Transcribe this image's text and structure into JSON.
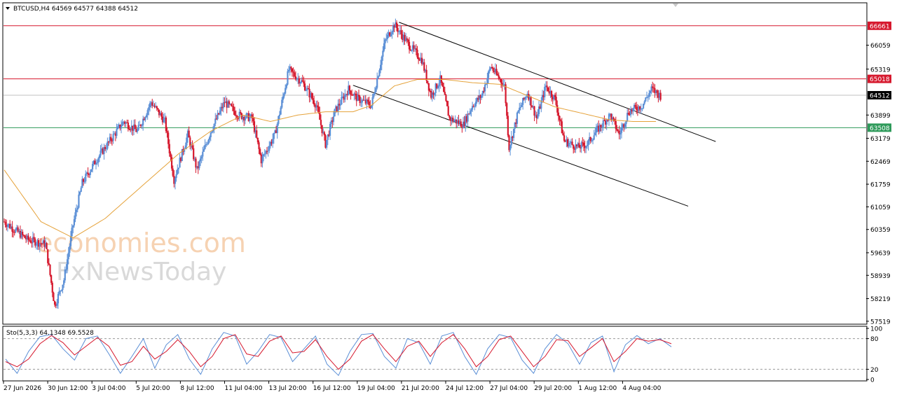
{
  "header": {
    "symbol_line": "BTCUSD,H4  64569 64577 64388 64512",
    "stoch_line": "Sto(5,3,3) 64.1348 69.5528"
  },
  "watermark": {
    "line1": "economies.com",
    "line2": "FxNewsToday"
  },
  "colors": {
    "bull": "#5b8fd6",
    "bear": "#d6182d",
    "ma": "#e5a23a",
    "resistance": "#d6182d",
    "support": "#2e9a5a",
    "stoch_main": "#5b8fd6",
    "stoch_signal": "#d6182d"
  },
  "chart_data": [
    {
      "type": "candlestick",
      "title": "",
      "y_ticks": [
        66661,
        66059,
        65319,
        65018,
        64512,
        63899,
        63508,
        63179,
        62469,
        61759,
        61059,
        60359,
        59639,
        58939,
        58219,
        57519
      ],
      "ylim": [
        57450,
        67350
      ],
      "x_tick_labels": [
        "27 Jun 2026",
        "30 Jun 12:00",
        "3 Jul 04:00",
        "5 Jul 20:00",
        "8 Jul 12:00",
        "11 Jul 04:00",
        "13 Jul 20:00",
        "16 Jul 12:00",
        "19 Jul 04:00",
        "21 Jul 20:00",
        "24 Jul 12:00",
        "27 Jul 04:00",
        "29 Jul 20:00",
        "1 Aug 12:00",
        "4 Aug 04:00"
      ],
      "horizontal_levels": [
        {
          "value": 66661,
          "label": "66661",
          "kind": "resistance"
        },
        {
          "value": 65018,
          "label": "65018",
          "kind": "resistance"
        },
        {
          "value": 64512,
          "label": "64512",
          "kind": "current"
        },
        {
          "value": 63508,
          "label": "63508",
          "kind": "support"
        }
      ],
      "trendlines": [
        {
          "from": [
            86,
            66770
          ],
          "to": [
            155,
            63080
          ]
        },
        {
          "from": [
            76,
            64820
          ],
          "to": [
            149,
            61080
          ]
        }
      ],
      "price_path": [
        [
          0,
          60600
        ],
        [
          5,
          60050
        ],
        [
          9,
          59900
        ],
        [
          11,
          58000
        ],
        [
          13,
          58800
        ],
        [
          15,
          60500
        ],
        [
          17,
          61800
        ],
        [
          20,
          62500
        ],
        [
          23,
          63100
        ],
        [
          26,
          63700
        ],
        [
          29,
          63400
        ],
        [
          32,
          64300
        ],
        [
          35,
          63700
        ],
        [
          37,
          61900
        ],
        [
          40,
          63300
        ],
        [
          42,
          62200
        ],
        [
          45,
          63400
        ],
        [
          48,
          64300
        ],
        [
          51,
          63900
        ],
        [
          54,
          63800
        ],
        [
          56,
          62500
        ],
        [
          59,
          63300
        ],
        [
          62,
          65300
        ],
        [
          65,
          64900
        ],
        [
          68,
          64200
        ],
        [
          70,
          63000
        ],
        [
          72,
          64000
        ],
        [
          75,
          64700
        ],
        [
          77,
          64400
        ],
        [
          80,
          64200
        ],
        [
          83,
          66200
        ],
        [
          85,
          66700
        ],
        [
          88,
          66100
        ],
        [
          91,
          65600
        ],
        [
          93,
          64500
        ],
        [
          95,
          65000
        ],
        [
          97,
          63800
        ],
        [
          100,
          63600
        ],
        [
          102,
          64200
        ],
        [
          104,
          64500
        ],
        [
          106,
          65400
        ],
        [
          109,
          64800
        ],
        [
          110,
          62900
        ],
        [
          112,
          64000
        ],
        [
          114,
          64600
        ],
        [
          116,
          63800
        ],
        [
          118,
          64800
        ],
        [
          120,
          64400
        ],
        [
          122,
          63100
        ],
        [
          125,
          62900
        ],
        [
          127,
          63000
        ],
        [
          129,
          63400
        ],
        [
          132,
          63900
        ],
        [
          134,
          63300
        ],
        [
          136,
          64000
        ],
        [
          139,
          64200
        ],
        [
          141,
          64700
        ],
        [
          143,
          64500
        ]
      ],
      "moving_average": [
        [
          0,
          62200
        ],
        [
          8,
          60600
        ],
        [
          15,
          60100
        ],
        [
          22,
          60700
        ],
        [
          30,
          61700
        ],
        [
          38,
          62700
        ],
        [
          45,
          63400
        ],
        [
          52,
          63900
        ],
        [
          58,
          63700
        ],
        [
          64,
          63900
        ],
        [
          70,
          64000
        ],
        [
          76,
          64000
        ],
        [
          80,
          64200
        ],
        [
          85,
          64800
        ],
        [
          90,
          65000
        ],
        [
          96,
          65000
        ],
        [
          102,
          64900
        ],
        [
          108,
          64850
        ],
        [
          114,
          64500
        ],
        [
          120,
          64150
        ],
        [
          126,
          63950
        ],
        [
          132,
          63750
        ],
        [
          137,
          63700
        ],
        [
          142,
          63700
        ]
      ]
    },
    {
      "type": "line",
      "title": "",
      "y_ticks": [
        100,
        80,
        20,
        0
      ],
      "ylim": [
        0,
        100
      ],
      "levels": [
        80,
        20
      ],
      "series": [
        {
          "values": [
            40,
            12,
            55,
            84,
            88,
            60,
            38,
            80,
            85,
            50,
            12,
            45,
            80,
            22,
            68,
            88,
            40,
            10,
            60,
            92,
            85,
            30,
            55,
            88,
            82,
            35,
            60,
            85,
            30,
            8,
            55,
            88,
            90,
            45,
            22,
            80,
            72,
            30,
            85,
            92,
            45,
            10,
            60,
            88,
            82,
            38,
            12,
            60,
            88,
            70,
            30,
            72,
            85,
            15,
            68,
            86,
            70,
            80,
            64
          ]
        },
        {
          "values": [
            35,
            25,
            40,
            70,
            86,
            72,
            48,
            65,
            82,
            65,
            28,
            35,
            65,
            40,
            55,
            78,
            55,
            25,
            45,
            80,
            88,
            50,
            45,
            75,
            85,
            52,
            55,
            78,
            45,
            20,
            40,
            75,
            88,
            60,
            35,
            65,
            75,
            45,
            72,
            88,
            60,
            25,
            45,
            78,
            85,
            55,
            25,
            45,
            78,
            76,
            45,
            62,
            80,
            35,
            55,
            80,
            75,
            78,
            70
          ]
        }
      ]
    }
  ]
}
